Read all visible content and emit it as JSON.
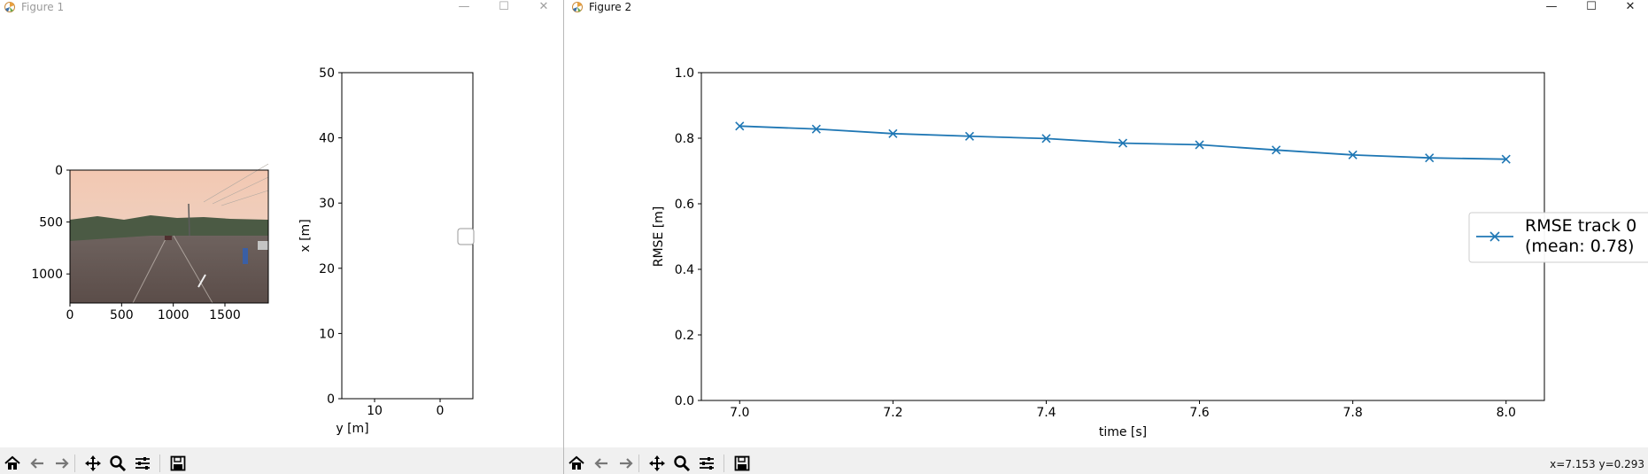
{
  "window1": {
    "title": "Figure 1",
    "controls": {
      "minimize": "—",
      "maximize": "☐",
      "close": "✕"
    },
    "image_axes": {
      "xticks": [
        "0",
        "500",
        "1000",
        "1500"
      ],
      "yticks": [
        "0",
        "500",
        "1000"
      ]
    },
    "toolbar_icons": [
      "home-icon",
      "back-arrow-icon",
      "forward-arrow-icon",
      "pan-icon",
      "zoom-icon",
      "configure-subplots-icon",
      "save-icon"
    ]
  },
  "window2": {
    "title": "Figure 2",
    "controls": {
      "minimize": "—",
      "maximize": "☐",
      "close": "✕"
    },
    "status_text": "x=7.153 y=0.293",
    "toolbar_icons": [
      "home-icon",
      "back-arrow-icon",
      "forward-arrow-icon",
      "pan-icon",
      "zoom-icon",
      "configure-subplots-icon",
      "save-icon"
    ]
  },
  "chart_data": [
    {
      "type": "scatter",
      "xlabel": "y [m]",
      "ylabel": "x [m]",
      "xlim": [
        15,
        -5
      ],
      "ylim": [
        0,
        50
      ],
      "xticks": [
        "10",
        "0"
      ],
      "xtick_values": [
        10,
        0
      ],
      "yticks": [
        "0",
        "10",
        "20",
        "30",
        "40",
        "50"
      ],
      "ytick_values": [
        0,
        10,
        20,
        30,
        40,
        50
      ],
      "legend": {
        "placement": "center-right",
        "entries": []
      }
    },
    {
      "type": "line",
      "xlabel": "time [s]",
      "ylabel": "RMSE [m]",
      "xlim": [
        6.95,
        8.05
      ],
      "ylim": [
        0.0,
        1.0
      ],
      "xticks": [
        "7.0",
        "7.2",
        "7.4",
        "7.6",
        "7.8",
        "8.0"
      ],
      "xtick_values": [
        7.0,
        7.2,
        7.4,
        7.6,
        7.8,
        8.0
      ],
      "yticks": [
        "0.0",
        "0.2",
        "0.4",
        "0.6",
        "0.8",
        "1.0"
      ],
      "ytick_values": [
        0.0,
        0.2,
        0.4,
        0.6,
        0.8,
        1.0
      ],
      "marker": "x",
      "color": "#1f77b4",
      "series": [
        {
          "name": "RMSE track 0\n(mean: 0.78)",
          "x": [
            7.0,
            7.1,
            7.2,
            7.3,
            7.4,
            7.5,
            7.6,
            7.7,
            7.8,
            7.9,
            8.0
          ],
          "y": [
            0.837,
            0.828,
            0.814,
            0.806,
            0.799,
            0.785,
            0.78,
            0.764,
            0.749,
            0.74,
            0.736
          ]
        }
      ],
      "legend": {
        "placement": "center-right"
      }
    }
  ]
}
